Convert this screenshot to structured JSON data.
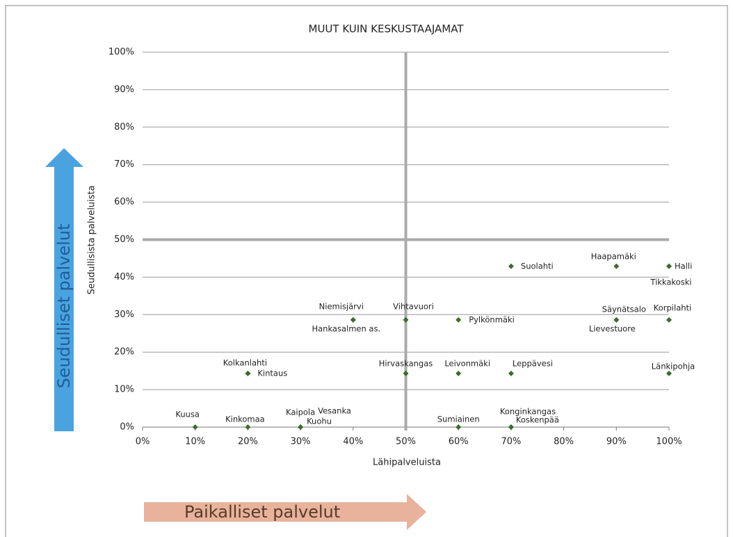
{
  "chart_data": {
    "type": "scatter",
    "title": "MUUT KUIN KESKUSTAAJAMAT",
    "xlabel": "Lähipalveluista",
    "ylabel": "Seudullisista palveluista",
    "labels": [
      "Kuusa",
      "Kinkomaa",
      "Kaipola",
      "Vesanka",
      "Kuohu",
      "Sumiainen",
      "Konginkangas",
      "Koskenpää",
      "Kolkanlahti",
      "Kintaus",
      "Hirvaskangas",
      "Leivonmäki",
      "Leppävesi",
      "Länkipohja",
      "Niemisjärvi",
      "Hankasalmen as.",
      "Vihtavuori",
      "Pylkönmäki",
      "Säynätsalo",
      "Lievestuore",
      "Korpilahti",
      "Suolahti",
      "Haapamäki",
      "Halli",
      "Tikkakoski"
    ],
    "x": [
      10,
      20,
      30,
      30,
      30,
      60,
      70,
      70,
      20,
      20,
      50,
      60,
      70,
      100,
      40,
      40,
      50,
      60,
      90,
      90,
      100,
      70,
      90,
      100,
      100
    ],
    "y": [
      0,
      0,
      0,
      0,
      0,
      0,
      0,
      0,
      14.3,
      14.3,
      14.3,
      14.3,
      14.3,
      14.3,
      28.6,
      28.6,
      28.6,
      28.6,
      28.6,
      28.6,
      28.6,
      42.9,
      42.9,
      42.9,
      42.9
    ],
    "color": "#3d6b2b",
    "xlim": [
      0,
      100
    ],
    "ylim": [
      0,
      100
    ],
    "xticks": [
      {
        "value": 0,
        "label": "0%"
      },
      {
        "value": 10,
        "label": "10%"
      },
      {
        "value": 20,
        "label": "20%"
      },
      {
        "value": 30,
        "label": "30%"
      },
      {
        "value": 40,
        "label": "40%"
      },
      {
        "value": 50,
        "label": "50%"
      },
      {
        "value": 60,
        "label": "60%"
      },
      {
        "value": 70,
        "label": "70%"
      },
      {
        "value": 80,
        "label": "80%"
      },
      {
        "value": 90,
        "label": "90%"
      },
      {
        "value": 100,
        "label": "100%"
      }
    ],
    "yticks": [
      {
        "value": 0,
        "label": "0%"
      },
      {
        "value": 10,
        "label": "10%"
      },
      {
        "value": 20,
        "label": "20%"
      },
      {
        "value": 30,
        "label": "30%"
      },
      {
        "value": 40,
        "label": "40%"
      },
      {
        "value": 50,
        "label": "50%"
      },
      {
        "value": 60,
        "label": "60%"
      },
      {
        "value": 70,
        "label": "70%"
      },
      {
        "value": 80,
        "label": "80%"
      },
      {
        "value": 90,
        "label": "90%"
      },
      {
        "value": 100,
        "label": "100%"
      }
    ],
    "grid": true,
    "vlines": [
      50
    ],
    "hlines": [
      50
    ],
    "annotations": [
      "Seudulliset palvelut",
      "Paikalliset palvelut"
    ]
  }
}
